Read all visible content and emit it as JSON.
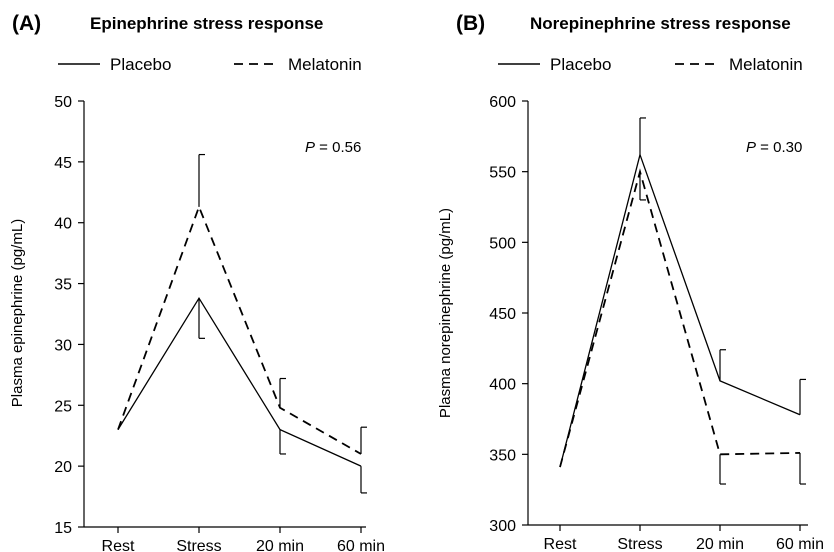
{
  "chart_data": [
    {
      "type": "line",
      "panel_label": "(A)",
      "title": "Epinephrine stress response",
      "ylabel": "Plasma epinephrine (pg/mL)",
      "xlabel": "",
      "categories": [
        "Rest",
        "Stress",
        "20 min",
        "60 min"
      ],
      "ylim": [
        15,
        50
      ],
      "yticks": [
        15,
        20,
        25,
        30,
        35,
        40,
        45,
        50
      ],
      "p_label": "P",
      "p_value": " = 0.56",
      "legend_position": "top",
      "series": [
        {
          "name": "Placebo",
          "style": "solid",
          "values": [
            23,
            33.8,
            23,
            20
          ],
          "err_low": [
            null,
            30.5,
            21,
            17.8
          ],
          "err_high": [
            null,
            null,
            null,
            null
          ]
        },
        {
          "name": "Melatonin",
          "style": "dashed",
          "values": [
            23,
            41.3,
            24.8,
            21
          ],
          "err_low": [
            null,
            null,
            null,
            null
          ],
          "err_high": [
            null,
            45.6,
            27.2,
            23.2
          ]
        }
      ]
    },
    {
      "type": "line",
      "panel_label": "(B)",
      "title": "Norepinephrine stress response",
      "ylabel": "Plasma norepinephrine (pg/mL)",
      "xlabel": "",
      "categories": [
        "Rest",
        "Stress",
        "20 min",
        "60 min"
      ],
      "ylim": [
        300,
        600
      ],
      "yticks": [
        300,
        350,
        400,
        450,
        500,
        550,
        600
      ],
      "p_label": "P",
      "p_value": " = 0.30",
      "legend_position": "top",
      "series": [
        {
          "name": "Placebo",
          "style": "solid",
          "values": [
            341,
            562,
            402,
            378
          ],
          "err_low": [
            null,
            null,
            null,
            null
          ],
          "err_high": [
            null,
            588,
            424,
            403
          ]
        },
        {
          "name": "Melatonin",
          "style": "dashed",
          "values": [
            341,
            550,
            350,
            351
          ],
          "err_low": [
            null,
            530,
            329,
            329
          ],
          "err_high": [
            null,
            null,
            null,
            null
          ]
        }
      ]
    }
  ]
}
